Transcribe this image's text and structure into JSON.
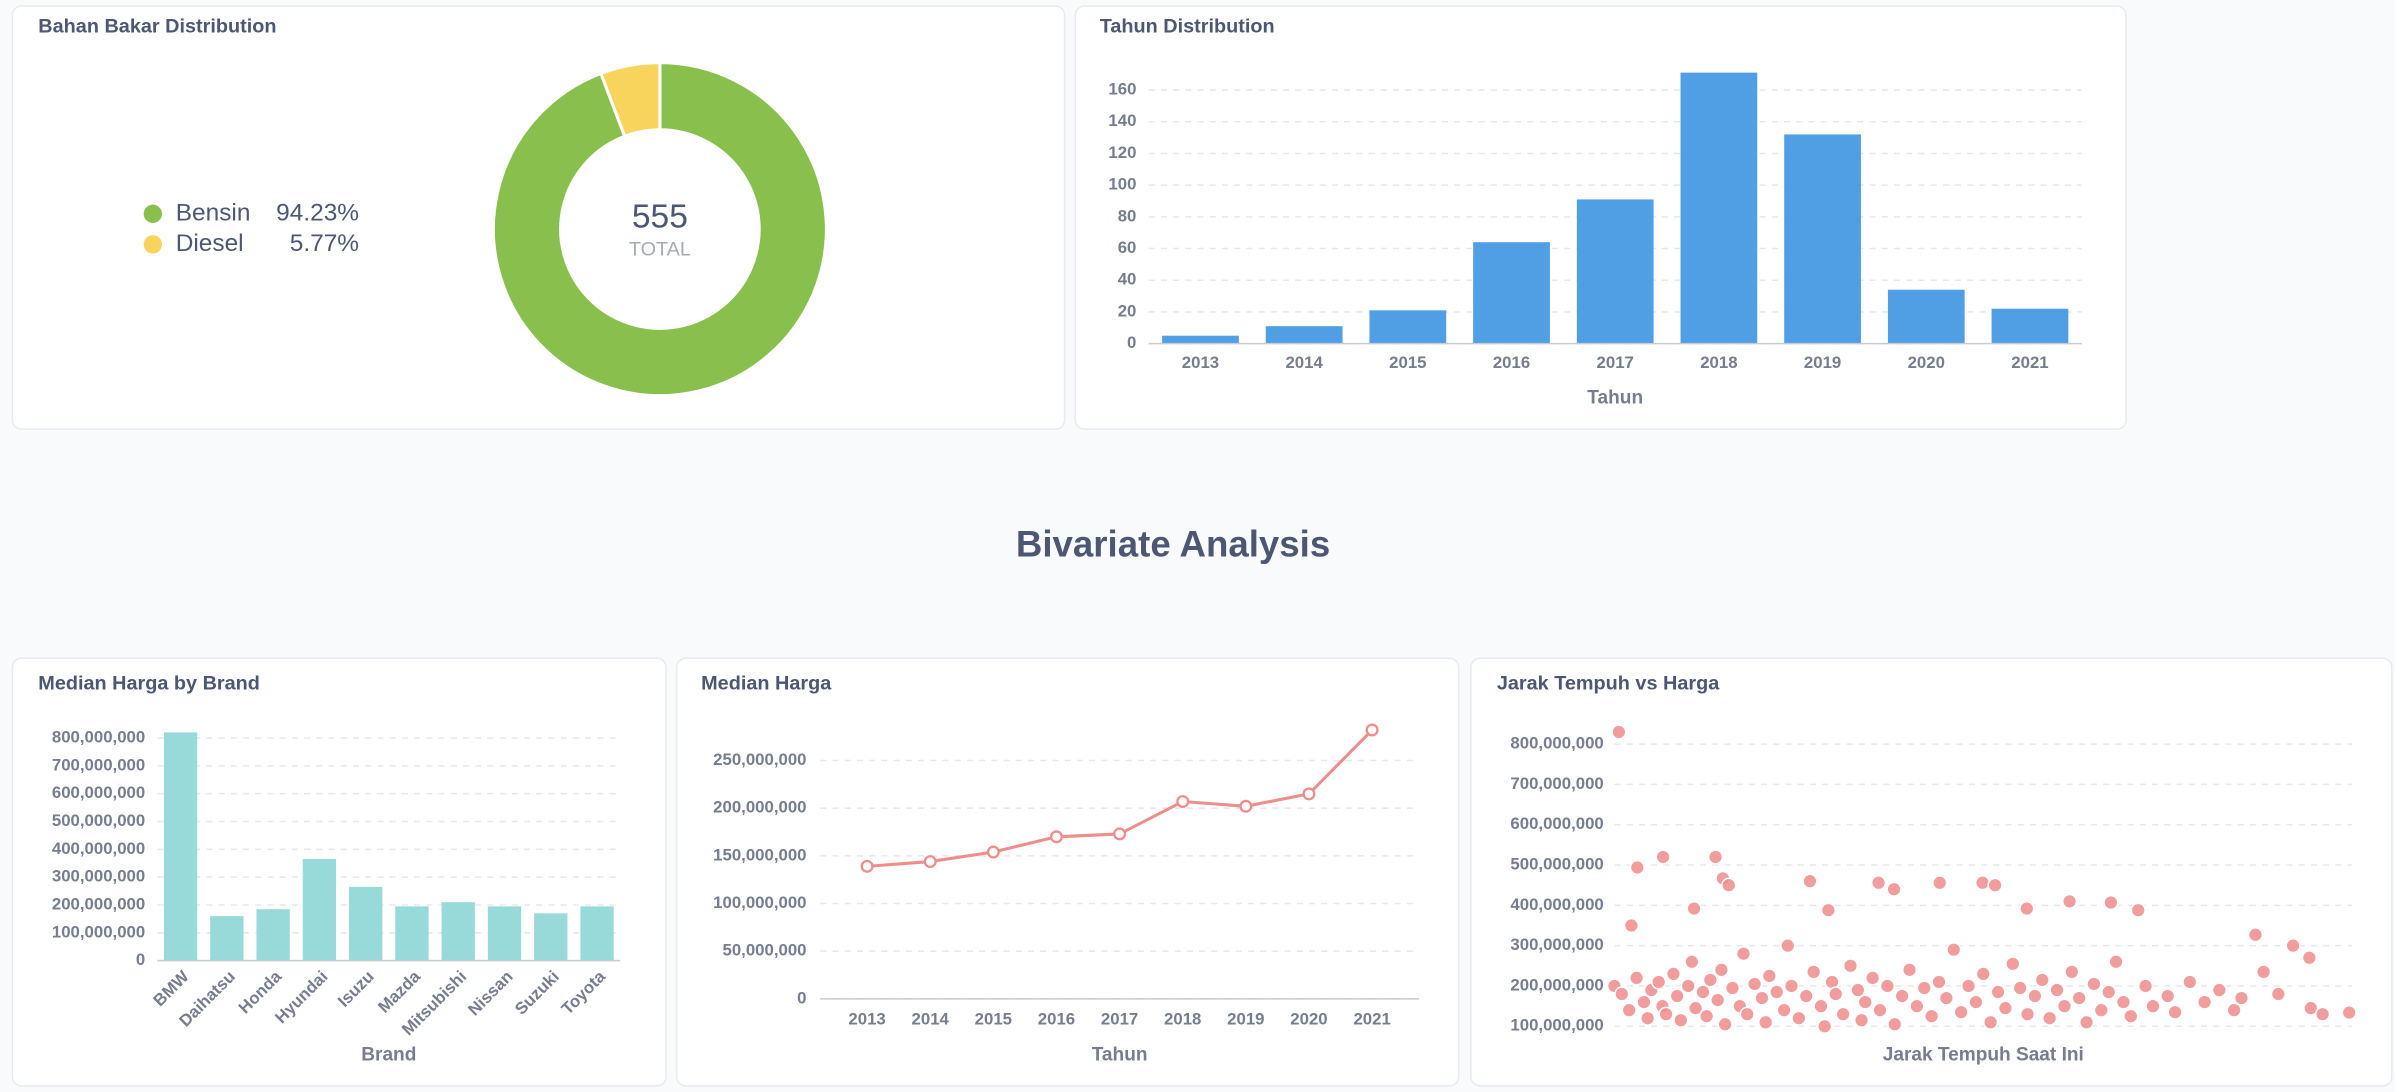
{
  "section_title": "Bivariate Analysis",
  "chart_data": [
    {
      "type": "pie",
      "title": "Bahan Bakar Distribution",
      "categories": [
        "Bensin",
        "Diesel"
      ],
      "values": [
        94.23,
        5.77
      ],
      "value_labels": [
        "94.23%",
        "5.77%"
      ],
      "colors": [
        "#88bf4d",
        "#f9d45c"
      ],
      "total": 555,
      "total_label": "TOTAL"
    },
    {
      "type": "bar",
      "title": "Tahun Distribution",
      "x_label": "Tahun",
      "categories": [
        "2013",
        "2014",
        "2015",
        "2016",
        "2017",
        "2018",
        "2019",
        "2020",
        "2021"
      ],
      "values": [
        5,
        11,
        21,
        64,
        91,
        171,
        132,
        34,
        22
      ],
      "color": "#509ee3",
      "ylim": [
        0,
        175
      ],
      "yticks": [
        0,
        20,
        40,
        60,
        80,
        100,
        120,
        140,
        160
      ],
      "grid": true
    },
    {
      "type": "bar",
      "title": "Median Harga by Brand",
      "x_label": "Brand",
      "categories": [
        "BMW",
        "Daihatsu",
        "Honda",
        "Hyundai",
        "Isuzu",
        "Mazda",
        "Mitsubishi",
        "Nissan",
        "Suzuki",
        "Toyota"
      ],
      "values": [
        820000000,
        160000000,
        185000000,
        365000000,
        265000000,
        195000000,
        210000000,
        195000000,
        170000000,
        195000000
      ],
      "color": "#98d9d9",
      "ylim": [
        0,
        850000000
      ],
      "yticks": [
        0,
        {
          "value": 100000000,
          "label": "100,000,000"
        },
        {
          "value": 200000000,
          "label": "200,000,000"
        },
        {
          "value": 300000000,
          "label": "300,000,000"
        },
        {
          "value": 400000000,
          "label": "400,000,000"
        },
        {
          "value": 500000000,
          "label": "500,000,000"
        },
        {
          "value": 600000000,
          "label": "600,000,000"
        },
        {
          "value": 700000000,
          "label": "700,000,000"
        },
        {
          "value": 800000000,
          "label": "800,000,000"
        }
      ],
      "grid": true
    },
    {
      "type": "line",
      "title": "Median Harga",
      "x_label": "Tahun",
      "categories": [
        "2013",
        "2014",
        "2015",
        "2016",
        "2017",
        "2018",
        "2019",
        "2020",
        "2021"
      ],
      "values": [
        139000000,
        144000000,
        154000000,
        170000000,
        173000000,
        207000000,
        202000000,
        215000000,
        282000000
      ],
      "color": "#ef8c8c",
      "ylim": [
        0,
        290000000
      ],
      "yticks": [
        0,
        {
          "value": 50000000,
          "label": "50,000,000"
        },
        {
          "value": 100000000,
          "label": "100,000,000"
        },
        {
          "value": 150000000,
          "label": "150,000,000"
        },
        {
          "value": 200000000,
          "label": "200,000,000"
        },
        {
          "value": 250000000,
          "label": "250,000,000"
        }
      ],
      "grid": true
    },
    {
      "type": "scatter",
      "title": "Jarak Tempuh vs Harga",
      "x_label": "Jarak Tempuh Saat Ini",
      "color": "#ef8c8c",
      "xlim": [
        0,
        100
      ],
      "ylim": [
        70000000,
        850000000
      ],
      "yticks": [
        {
          "value": 100000000,
          "label": "100,000,000"
        },
        {
          "value": 200000000,
          "label": "200,000,000"
        },
        {
          "value": 300000000,
          "label": "300,000,000"
        },
        {
          "value": 400000000,
          "label": "400,000,000"
        },
        {
          "value": 500000000,
          "label": "500,000,000"
        },
        {
          "value": 600000000,
          "label": "600,000,000"
        },
        {
          "value": 700000000,
          "label": "700,000,000"
        },
        {
          "value": 800000000,
          "label": "800,000,000"
        }
      ],
      "grid": true,
      "x": [
        0.6,
        2.3,
        3.1,
        6.6,
        10.8,
        13.7,
        14.7,
        15.5,
        26.5,
        29,
        35.8,
        37.9,
        44.1,
        49.9,
        51.6,
        55.9,
        61.7,
        67.3,
        71,
        86.9,
        94.2,
        94.4,
        99.6,
        0,
        1,
        2,
        3,
        4,
        4.5,
        5,
        6,
        6.5,
        7,
        8,
        8.5,
        9,
        10,
        10.5,
        11,
        12,
        12.5,
        13,
        14,
        14.5,
        15,
        16,
        17,
        17.5,
        18,
        19,
        20,
        20.5,
        21,
        22,
        23,
        23.5,
        24,
        25,
        26,
        27,
        28,
        28.5,
        29.5,
        30,
        31,
        32,
        33,
        33.5,
        34,
        35,
        36,
        37,
        38,
        39,
        40,
        41,
        42,
        43,
        44,
        45,
        46,
        47,
        48,
        49,
        50,
        51,
        52,
        53,
        54,
        55,
        56,
        57,
        58,
        59,
        60,
        61,
        62,
        63,
        64,
        65,
        66,
        67,
        68,
        69,
        70,
        72,
        73,
        75,
        76,
        78,
        80,
        82,
        84,
        85,
        88,
        90,
        92,
        96
      ],
      "values": [
        830000000,
        350000000,
        494000000,
        520000000,
        392000000,
        520000000,
        467000000,
        450000000,
        460000000,
        388000000,
        456000000,
        440000000,
        456000000,
        456000000,
        450000000,
        392000000,
        410000000,
        407000000,
        388000000,
        327000000,
        270000000,
        145000000,
        134000000,
        200000000,
        180000000,
        140000000,
        220000000,
        160000000,
        120000000,
        190000000,
        210000000,
        150000000,
        130000000,
        230000000,
        175000000,
        115000000,
        200000000,
        260000000,
        145000000,
        185000000,
        125000000,
        215000000,
        165000000,
        240000000,
        105000000,
        195000000,
        150000000,
        280000000,
        130000000,
        205000000,
        170000000,
        110000000,
        225000000,
        185000000,
        140000000,
        300000000,
        200000000,
        120000000,
        175000000,
        235000000,
        150000000,
        100000000,
        210000000,
        180000000,
        130000000,
        250000000,
        190000000,
        115000000,
        160000000,
        220000000,
        140000000,
        200000000,
        105000000,
        175000000,
        240000000,
        150000000,
        195000000,
        125000000,
        210000000,
        170000000,
        290000000,
        135000000,
        200000000,
        160000000,
        230000000,
        110000000,
        185000000,
        145000000,
        255000000,
        195000000,
        130000000,
        175000000,
        215000000,
        120000000,
        190000000,
        150000000,
        235000000,
        170000000,
        110000000,
        205000000,
        140000000,
        185000000,
        260000000,
        160000000,
        125000000,
        200000000,
        150000000,
        175000000,
        135000000,
        210000000,
        160000000,
        190000000,
        140000000,
        170000000,
        235000000,
        180000000,
        300000000,
        130000000
      ]
    }
  ]
}
